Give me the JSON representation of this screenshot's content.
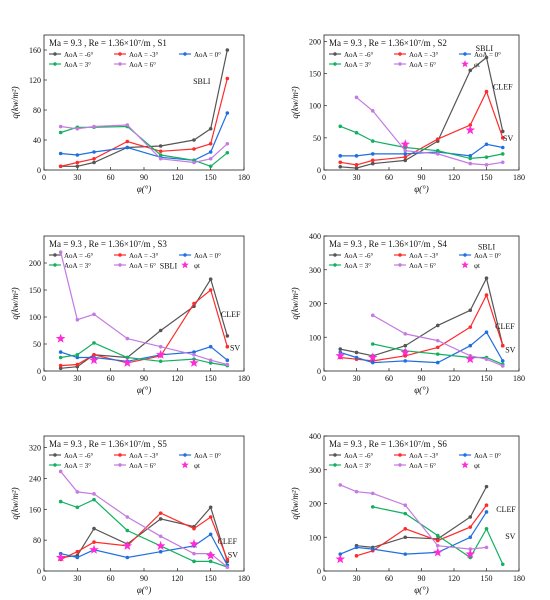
{
  "figure": {
    "type": "multi-panel line chart"
  },
  "chart_data": [
    {
      "type": "line",
      "panel": "S1",
      "header": "Ma = 9.3 , Re = 1.36×10⁷/m , S1",
      "xlabel": "φ(°)",
      "ylabel": "q(kw/m²)",
      "xlim": [
        0,
        180
      ],
      "ylim": [
        0,
        180
      ],
      "xticks": [
        0,
        30,
        60,
        90,
        120,
        150,
        180
      ],
      "yticks": [
        0,
        40,
        80,
        120,
        160
      ],
      "series": [
        {
          "name": "AoA = -6°",
          "color": "#555555",
          "x": [
            15,
            30,
            45,
            75,
            105,
            135,
            150,
            165
          ],
          "y": [
            5,
            5,
            10,
            30,
            32,
            40,
            55,
            160
          ]
        },
        {
          "name": "AoA = -3°",
          "color": "#ff2a2a",
          "x": [
            15,
            30,
            45,
            75,
            105,
            135,
            150,
            165
          ],
          "y": [
            5,
            10,
            15,
            38,
            25,
            28,
            35,
            122
          ]
        },
        {
          "name": "AoA = 0°",
          "color": "#1f6fe0",
          "x": [
            15,
            30,
            45,
            75,
            105,
            135,
            150,
            165
          ],
          "y": [
            22,
            20,
            24,
            30,
            17,
            13,
            24,
            76
          ]
        },
        {
          "name": "AoA = 3°",
          "color": "#12b060",
          "x": [
            15,
            30,
            45,
            75,
            105,
            135,
            150,
            165
          ],
          "y": [
            50,
            57,
            57,
            58,
            20,
            13,
            5,
            23
          ]
        },
        {
          "name": "AoA = 6°",
          "color": "#c47ae0",
          "x": [
            15,
            30,
            45,
            75,
            105,
            135,
            150,
            165
          ],
          "y": [
            58,
            55,
            58,
            60,
            15,
            10,
            15,
            35
          ]
        }
      ],
      "markers_phi_t": [],
      "annotations": [
        {
          "text": "SBLI",
          "x": 142,
          "y": 115
        }
      ]
    },
    {
      "type": "line",
      "panel": "S2",
      "header": "Ma = 9.3 , Re = 1.36×10⁷/m , S2",
      "xlabel": "φ(°)",
      "ylabel": "q(kw/m²)",
      "xlim": [
        0,
        180
      ],
      "ylim": [
        0,
        210
      ],
      "xticks": [
        0,
        30,
        60,
        90,
        120,
        150,
        180
      ],
      "yticks": [
        0,
        50,
        100,
        150,
        200
      ],
      "series": [
        {
          "name": "AoA = -6°",
          "color": "#555555",
          "x": [
            15,
            30,
            45,
            75,
            105,
            135,
            150,
            165
          ],
          "y": [
            5,
            3,
            10,
            15,
            45,
            155,
            175,
            60
          ]
        },
        {
          "name": "AoA = -3°",
          "color": "#ff2a2a",
          "x": [
            15,
            30,
            45,
            75,
            105,
            135,
            150,
            165
          ],
          "y": [
            12,
            8,
            15,
            20,
            48,
            70,
            122,
            50
          ]
        },
        {
          "name": "AoA = 0°",
          "color": "#1f6fe0",
          "x": [
            15,
            30,
            45,
            75,
            105,
            135,
            150,
            165
          ],
          "y": [
            22,
            22,
            25,
            25,
            28,
            22,
            40,
            35
          ]
        },
        {
          "name": "AoA = 3°",
          "color": "#12b060",
          "x": [
            15,
            30,
            45,
            75,
            105,
            135,
            150,
            165
          ],
          "y": [
            68,
            58,
            45,
            35,
            30,
            18,
            20,
            25
          ]
        },
        {
          "name": "AoA = 6°",
          "color": "#c47ae0",
          "x": [
            30,
            45,
            75,
            105,
            135,
            150,
            165
          ],
          "y": [
            113,
            92,
            30,
            25,
            10,
            8,
            12
          ]
        }
      ],
      "markers_phi_t": [
        {
          "x": 75,
          "y": 40
        },
        {
          "x": 135,
          "y": 62
        }
      ],
      "annotations": [
        {
          "text": "SBLI",
          "x": 148,
          "y": 185
        },
        {
          "text": "CLEF",
          "x": 165,
          "y": 125
        },
        {
          "text": "SV",
          "x": 170,
          "y": 45
        }
      ],
      "phi_t_label": "φt"
    },
    {
      "type": "line",
      "panel": "S3",
      "header": "Ma = 9.3 , Re = 1.36×10⁷/m , S3",
      "xlabel": "φ(°)",
      "ylabel": "q(kw/m²)",
      "xlim": [
        0,
        180
      ],
      "ylim": [
        0,
        250
      ],
      "xticks": [
        0,
        30,
        60,
        90,
        120,
        150,
        180
      ],
      "yticks": [
        0,
        50,
        100,
        150,
        200
      ],
      "series": [
        {
          "name": "AoA = -6°",
          "color": "#555555",
          "x": [
            15,
            30,
            45,
            75,
            105,
            135,
            150,
            165
          ],
          "y": [
            5,
            8,
            30,
            25,
            75,
            120,
            170,
            65
          ]
        },
        {
          "name": "AoA = -3°",
          "color": "#ff2a2a",
          "x": [
            15,
            30,
            45,
            75,
            105,
            135,
            150,
            165
          ],
          "y": [
            10,
            12,
            30,
            15,
            28,
            125,
            150,
            45
          ]
        },
        {
          "name": "AoA = 0°",
          "color": "#1f6fe0",
          "x": [
            15,
            30,
            45,
            75,
            105,
            135,
            150,
            165
          ],
          "y": [
            35,
            25,
            25,
            18,
            30,
            35,
            45,
            20
          ]
        },
        {
          "name": "AoA = 3°",
          "color": "#12b060",
          "x": [
            15,
            30,
            45,
            75,
            105,
            135,
            150,
            165
          ],
          "y": [
            25,
            30,
            52,
            25,
            18,
            22,
            15,
            10
          ]
        },
        {
          "name": "AoA = 6°",
          "color": "#c47ae0",
          "x": [
            15,
            30,
            45,
            75,
            105,
            135,
            150,
            165
          ],
          "y": [
            220,
            95,
            105,
            60,
            45,
            30,
            20,
            12
          ]
        }
      ],
      "markers_phi_t": [
        {
          "x": 15,
          "y": 60
        },
        {
          "x": 45,
          "y": 20
        },
        {
          "x": 75,
          "y": 15
        },
        {
          "x": 105,
          "y": 30
        },
        {
          "x": 135,
          "y": 15
        }
      ],
      "annotations": [
        {
          "text": "SBLI",
          "x": 112,
          "y": 190
        },
        {
          "text": "CLEF",
          "x": 168,
          "y": 100
        },
        {
          "text": "SV",
          "x": 172,
          "y": 38
        }
      ],
      "phi_t_label": "φt"
    },
    {
      "type": "line",
      "panel": "S4",
      "header": "Ma = 9.3 , Re = 1.36×10⁷/m , S4",
      "xlabel": "φ(°)",
      "ylabel": "q(kw/m²)",
      "xlim": [
        0,
        180
      ],
      "ylim": [
        0,
        400
      ],
      "xticks": [
        0,
        30,
        60,
        90,
        120,
        150,
        180
      ],
      "yticks": [
        0,
        100,
        200,
        300,
        400
      ],
      "series": [
        {
          "name": "AoA = -6°",
          "color": "#555555",
          "x": [
            15,
            30,
            45,
            75,
            105,
            135,
            150,
            165
          ],
          "y": [
            65,
            55,
            45,
            75,
            135,
            180,
            275,
            75
          ]
        },
        {
          "name": "AoA = -3°",
          "color": "#ff2a2a",
          "x": [
            15,
            30,
            45,
            75,
            105,
            135,
            150,
            165
          ],
          "y": [
            40,
            35,
            30,
            45,
            70,
            130,
            225,
            75
          ]
        },
        {
          "name": "AoA = 0°",
          "color": "#1f6fe0",
          "x": [
            15,
            30,
            45,
            75,
            105,
            135,
            150,
            165
          ],
          "y": [
            55,
            40,
            25,
            30,
            25,
            75,
            115,
            30
          ]
        },
        {
          "name": "AoA = 3°",
          "color": "#12b060",
          "x": [
            45,
            75,
            105,
            135,
            150,
            165
          ],
          "y": [
            80,
            60,
            50,
            40,
            40,
            20
          ]
        },
        {
          "name": "AoA = 6°",
          "color": "#c47ae0",
          "x": [
            45,
            75,
            105,
            135,
            150,
            165
          ],
          "y": [
            165,
            110,
            90,
            45,
            35,
            15
          ]
        }
      ],
      "markers_phi_t": [
        {
          "x": 15,
          "y": 45
        },
        {
          "x": 45,
          "y": 40
        },
        {
          "x": 75,
          "y": 55
        },
        {
          "x": 135,
          "y": 35
        }
      ],
      "annotations": [
        {
          "text": "SBLI",
          "x": 150,
          "y": 360
        },
        {
          "text": "CLEF",
          "x": 167,
          "y": 125
        },
        {
          "text": "SV",
          "x": 172,
          "y": 55
        }
      ],
      "phi_t_label": "φt"
    },
    {
      "type": "line",
      "panel": "S5",
      "header": "Ma = 9.3 , Re = 1.36×10⁷/m , S5",
      "xlabel": "φ(°)",
      "ylabel": "q(kw/m²)",
      "xlim": [
        0,
        180
      ],
      "ylim": [
        0,
        350
      ],
      "xticks": [
        0,
        30,
        60,
        90,
        120,
        150,
        180
      ],
      "yticks": [
        0,
        80,
        160,
        240,
        320
      ],
      "series": [
        {
          "name": "AoA = -6°",
          "color": "#555555",
          "x": [
            15,
            30,
            45,
            75,
            105,
            135,
            150,
            165
          ],
          "y": [
            35,
            40,
            110,
            70,
            135,
            115,
            165,
            25
          ]
        },
        {
          "name": "AoA = -3°",
          "color": "#ff2a2a",
          "x": [
            15,
            30,
            45,
            75,
            105,
            135,
            150,
            165
          ],
          "y": [
            30,
            50,
            75,
            65,
            150,
            110,
            140,
            30
          ]
        },
        {
          "name": "AoA = 0°",
          "color": "#1f6fe0",
          "x": [
            15,
            30,
            45,
            75,
            105,
            135,
            150,
            165
          ],
          "y": [
            45,
            35,
            55,
            35,
            50,
            65,
            95,
            15
          ]
        },
        {
          "name": "AoA = 3°",
          "color": "#12b060",
          "x": [
            15,
            30,
            45,
            75,
            105,
            135,
            150,
            165
          ],
          "y": [
            180,
            165,
            185,
            105,
            65,
            25,
            25,
            10
          ]
        },
        {
          "name": "AoA = 6°",
          "color": "#c47ae0",
          "x": [
            15,
            30,
            45,
            75,
            105,
            135,
            150,
            165
          ],
          "y": [
            258,
            205,
            200,
            140,
            90,
            45,
            45,
            10
          ]
        }
      ],
      "markers_phi_t": [
        {
          "x": 15,
          "y": 35
        },
        {
          "x": 45,
          "y": 55
        },
        {
          "x": 75,
          "y": 65
        },
        {
          "x": 105,
          "y": 65
        },
        {
          "x": 135,
          "y": 70
        },
        {
          "x": 150,
          "y": 40
        }
      ],
      "annotations": [
        {
          "text": "CLEF",
          "x": 165,
          "y": 70
        },
        {
          "text": "SV",
          "x": 170,
          "y": 35
        }
      ],
      "phi_t_label": "φt"
    },
    {
      "type": "line",
      "panel": "S6",
      "header": "Ma = 9.3 , Re = 1.36×10⁷/m , S6",
      "xlabel": "φ(°)",
      "ylabel": "q(kw/m²)",
      "xlim": [
        0,
        180
      ],
      "ylim": [
        0,
        400
      ],
      "xticks": [
        0,
        30,
        60,
        90,
        120,
        150,
        180
      ],
      "yticks": [
        0,
        100,
        200,
        300,
        400
      ],
      "series": [
        {
          "name": "AoA = -6°",
          "color": "#555555",
          "x": [
            30,
            45,
            75,
            105,
            135,
            150
          ],
          "y": [
            75,
            70,
            100,
            95,
            160,
            250
          ]
        },
        {
          "name": "AoA = -3°",
          "color": "#ff2a2a",
          "x": [
            30,
            45,
            75,
            105,
            135,
            150
          ],
          "y": [
            45,
            60,
            125,
            90,
            130,
            195
          ]
        },
        {
          "name": "AoA = 0°",
          "color": "#1f6fe0",
          "x": [
            15,
            30,
            45,
            75,
            105,
            135,
            150
          ],
          "y": [
            50,
            70,
            65,
            50,
            55,
            100,
            175
          ]
        },
        {
          "name": "AoA = 3°",
          "color": "#12b060",
          "x": [
            45,
            75,
            105,
            135,
            150,
            165
          ],
          "y": [
            190,
            170,
            105,
            40,
            125,
            20
          ]
        },
        {
          "name": "AoA = 6°",
          "color": "#c47ae0",
          "x": [
            15,
            30,
            45,
            75,
            105,
            135,
            150
          ],
          "y": [
            255,
            235,
            230,
            195,
            75,
            65,
            70
          ]
        }
      ],
      "markers_phi_t": [
        {
          "x": 15,
          "y": 35
        },
        {
          "x": 105,
          "y": 55
        },
        {
          "x": 135,
          "y": 50
        }
      ],
      "annotations": [
        {
          "text": "CLEF",
          "x": 168,
          "y": 175
        },
        {
          "text": "SV",
          "x": 172,
          "y": 95
        }
      ],
      "phi_t_label": "φt"
    }
  ]
}
